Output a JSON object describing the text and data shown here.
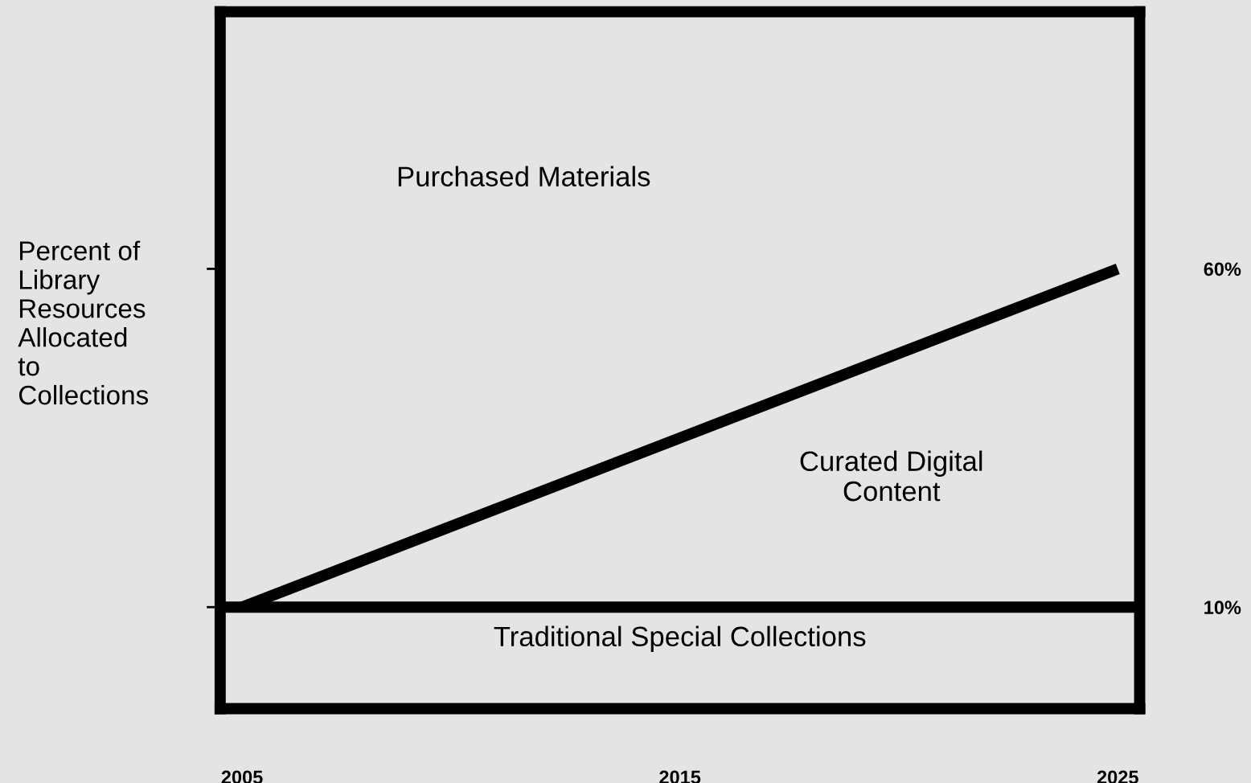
{
  "chart_data": {
    "type": "line",
    "ylabel": "Percent of\nLibrary\nResources\nAllocated\nto\nCollections",
    "x": [
      2005,
      2025
    ],
    "series": [
      {
        "color": "#000000",
        "values": [
          10,
          60
        ]
      }
    ],
    "xlim": [
      2004.5,
      2025.5
    ],
    "xticks": [
      2005,
      2015,
      2025
    ],
    "ylim": [
      -5,
      98
    ],
    "yticks": [
      {
        "value": 10,
        "label": "10%"
      },
      {
        "value": 60,
        "label": "60%"
      }
    ],
    "ref_lines": [
      {
        "axis": "y",
        "value": 10,
        "color": "#000000"
      }
    ],
    "annotations": [
      "Purchased Materials",
      "Curated Digital\nContent",
      "Traditional Special Collections"
    ],
    "grid": false,
    "legend": false
  }
}
